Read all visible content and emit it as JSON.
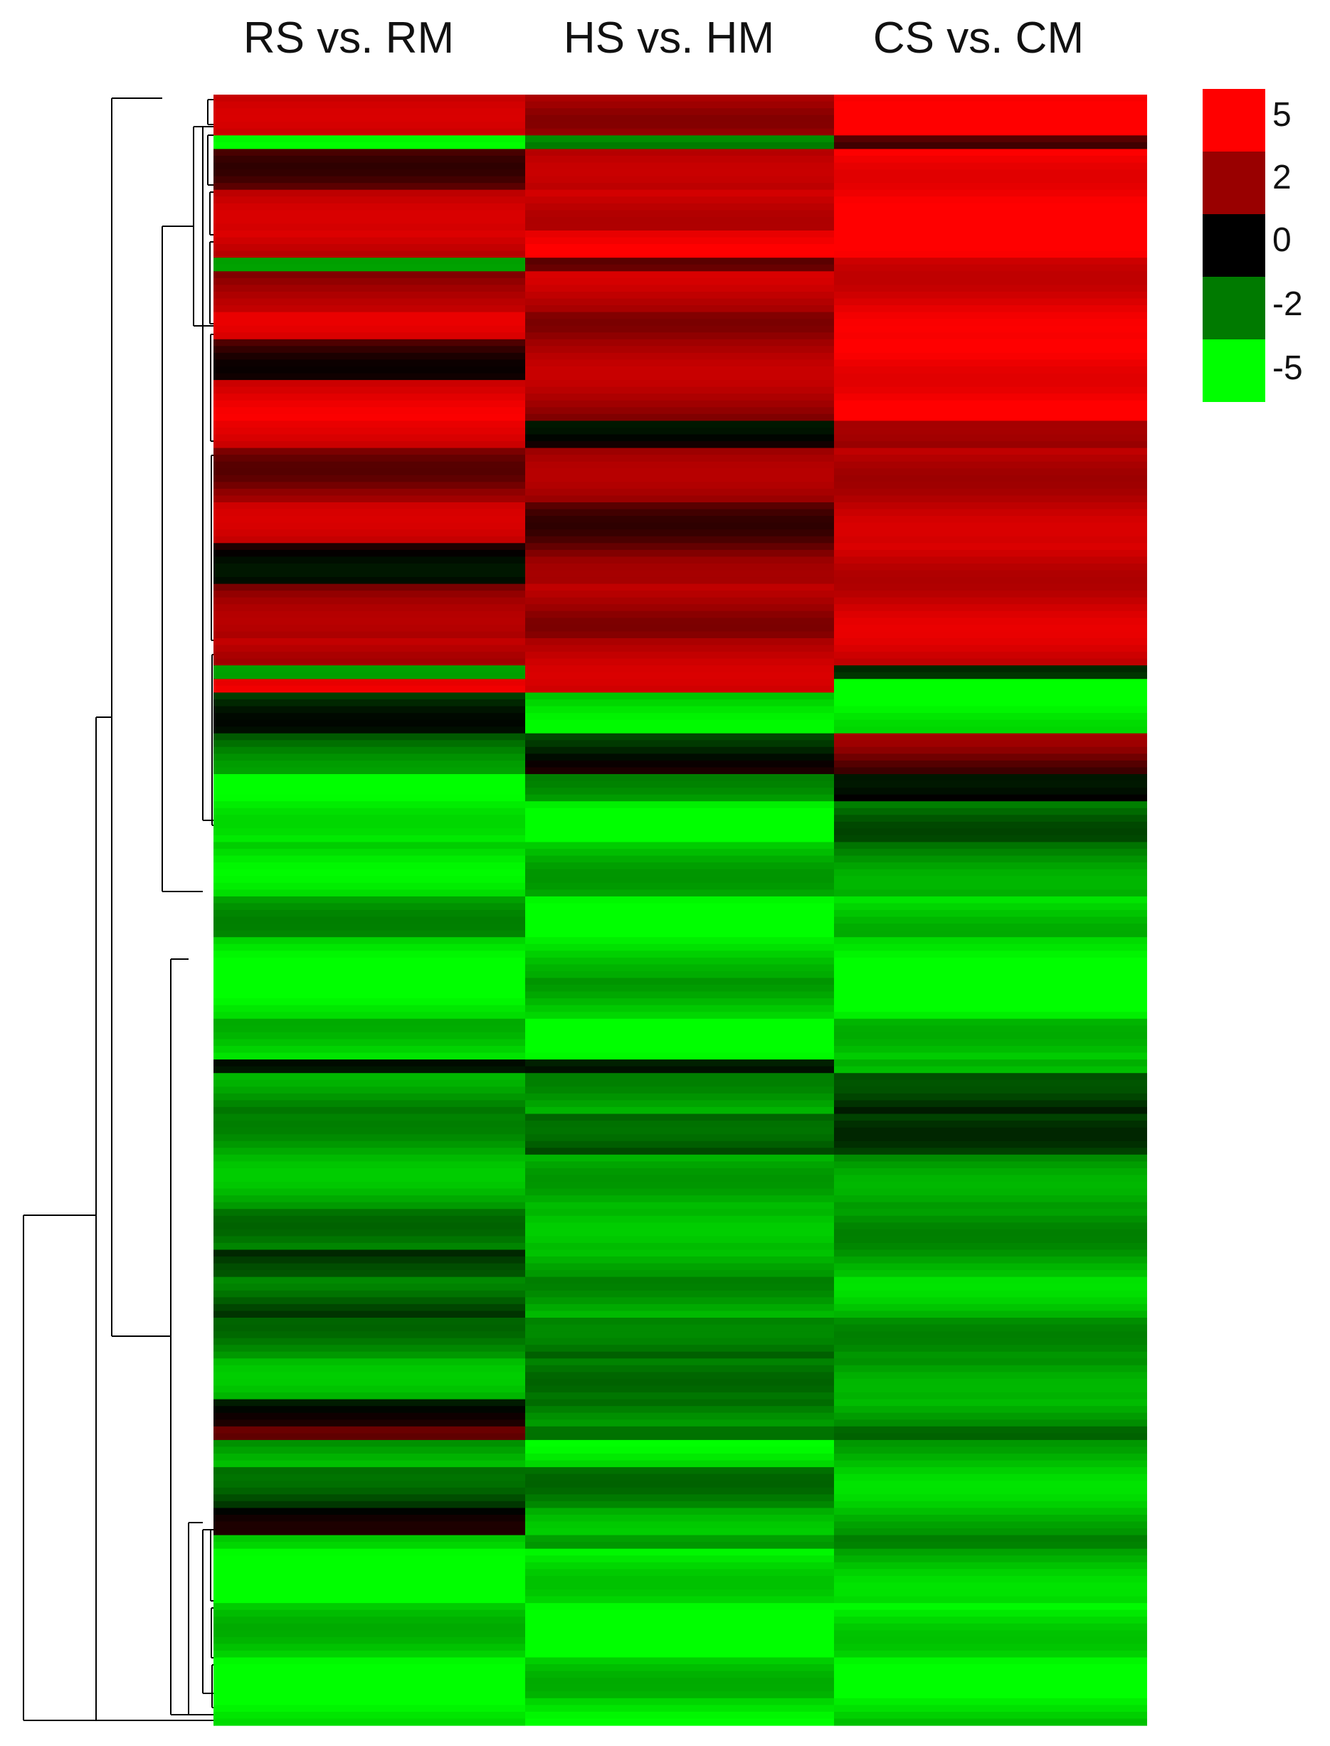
{
  "chart_data": {
    "type": "heatmap",
    "title": "",
    "columns": [
      "RS vs. RM",
      "HS vs. HM",
      "CS vs. CM"
    ],
    "colorscale": {
      "levels": [
        {
          "value": 5,
          "label": "5",
          "color": "#ff0000"
        },
        {
          "value": 2,
          "label": "2",
          "color": "#990000"
        },
        {
          "value": 0,
          "label": "0",
          "color": "#000000"
        },
        {
          "value": -2,
          "label": "-2",
          "color": "#007a00"
        },
        {
          "value": -5,
          "label": "-5",
          "color": "#00ff00"
        }
      ],
      "vmin": -5,
      "vmax": 5
    },
    "row_blocks": [
      {
        "rows": 6,
        "values": [
          3.0,
          2.6,
          5.0
        ]
      },
      {
        "rows": 2,
        "values": [
          -5.0,
          -2.0,
          0.5
        ]
      },
      {
        "rows": 6,
        "values": [
          1.5,
          2.5,
          5.0
        ]
      },
      {
        "rows": 6,
        "values": [
          3.0,
          3.5,
          5.0
        ]
      },
      {
        "rows": 4,
        "values": [
          3.5,
          5.0,
          5.0
        ]
      },
      {
        "rows": 2,
        "values": [
          -2.0,
          0.5,
          4.0
        ]
      },
      {
        "rows": 6,
        "values": [
          2.5,
          3.0,
          4.0
        ]
      },
      {
        "rows": 4,
        "values": [
          3.5,
          2.5,
          4.0
        ]
      },
      {
        "rows": 6,
        "values": [
          1.0,
          2.5,
          5.0
        ]
      },
      {
        "rows": 6,
        "values": [
          4.0,
          2.5,
          5.0
        ]
      },
      {
        "rows": 4,
        "values": [
          3.5,
          0.5,
          1.5
        ]
      },
      {
        "rows": 8,
        "values": [
          2.0,
          2.0,
          3.0
        ]
      },
      {
        "rows": 6,
        "values": [
          3.0,
          1.5,
          3.0
        ]
      },
      {
        "rows": 6,
        "values": [
          0.5,
          1.5,
          3.5
        ]
      },
      {
        "rows": 8,
        "values": [
          2.0,
          2.5,
          3.5
        ]
      },
      {
        "rows": 4,
        "values": [
          3.0,
          3.0,
          3.5
        ]
      },
      {
        "rows": 2,
        "values": [
          -2.0,
          3.0,
          0.0
        ]
      },
      {
        "rows": 2,
        "values": [
          5.0,
          3.0,
          -4.5
        ]
      },
      {
        "rows": 6,
        "values": [
          -1.0,
          -4.0,
          -5.0
        ]
      },
      {
        "rows": 6,
        "values": [
          -2.0,
          -0.5,
          1.5
        ]
      },
      {
        "rows": 4,
        "values": [
          -5.0,
          -3.0,
          0.5
        ]
      },
      {
        "rows": 6,
        "values": [
          -5.0,
          -4.5,
          -2.0
        ]
      },
      {
        "rows": 8,
        "values": [
          -4.0,
          -3.5,
          -2.5
        ]
      },
      {
        "rows": 6,
        "values": [
          -3.0,
          -5.0,
          -4.0
        ]
      },
      {
        "rows": 6,
        "values": [
          -4.5,
          -4.0,
          -5.0
        ]
      },
      {
        "rows": 6,
        "values": [
          -5.0,
          -3.5,
          -5.0
        ]
      },
      {
        "rows": 6,
        "values": [
          -4.0,
          -5.0,
          -4.0
        ]
      },
      {
        "rows": 2,
        "values": [
          0.5,
          -1.0,
          -3.0
        ]
      },
      {
        "rows": 6,
        "values": [
          -2.5,
          -3.0,
          -0.5
        ]
      },
      {
        "rows": 6,
        "values": [
          -3.0,
          -1.0,
          -1.5
        ]
      },
      {
        "rows": 8,
        "values": [
          -3.0,
          -3.5,
          -2.5
        ]
      },
      {
        "rows": 6,
        "values": [
          -2.5,
          -3.0,
          -3.0
        ]
      },
      {
        "rows": 4,
        "values": [
          -0.5,
          -3.5,
          -3.0
        ]
      },
      {
        "rows": 6,
        "values": [
          -1.5,
          -3.0,
          -3.5
        ]
      },
      {
        "rows": 6,
        "values": [
          -2.5,
          -1.5,
          -3.0
        ]
      },
      {
        "rows": 6,
        "values": [
          -3.0,
          -2.5,
          -2.5
        ]
      },
      {
        "rows": 4,
        "values": [
          -0.5,
          -2.0,
          -3.0
        ]
      },
      {
        "rows": 2,
        "values": [
          0.5,
          -1.0,
          -2.5
        ]
      },
      {
        "rows": 4,
        "values": [
          -3.0,
          -4.5,
          -3.5
        ]
      },
      {
        "rows": 6,
        "values": [
          -1.0,
          -2.5,
          -3.5
        ]
      },
      {
        "rows": 4,
        "values": [
          -0.5,
          -3.0,
          -3.5
        ]
      },
      {
        "rows": 2,
        "values": [
          -4.5,
          -2.0,
          -3.0
        ]
      },
      {
        "rows": 8,
        "values": [
          -5.0,
          -4.5,
          -3.5
        ]
      },
      {
        "rows": 8,
        "values": [
          -4.0,
          -5.0,
          -4.5
        ]
      },
      {
        "rows": 6,
        "values": [
          -4.5,
          -4.0,
          -5.0
        ]
      },
      {
        "rows": 4,
        "values": [
          -5.0,
          -4.5,
          -4.0
        ]
      }
    ]
  }
}
